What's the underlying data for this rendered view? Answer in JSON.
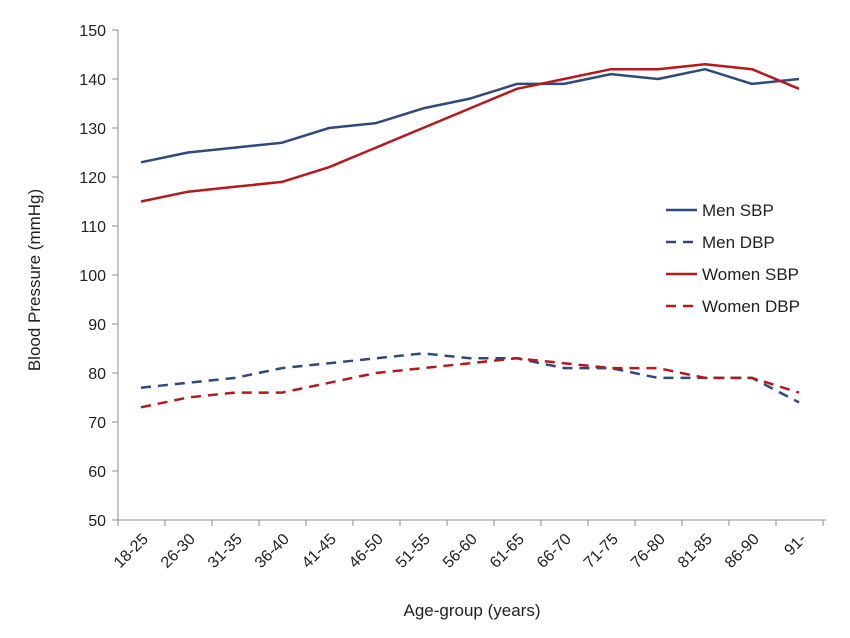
{
  "chart_data": {
    "type": "line",
    "title": "",
    "xlabel": "Age-group (years)",
    "ylabel": "Blood Pressure (mmHg)",
    "ylim": [
      50,
      150
    ],
    "yticks": [
      "50",
      "60",
      "70",
      "80",
      "90",
      "100",
      "110",
      "120",
      "130",
      "140",
      "150"
    ],
    "grid": false,
    "legend_position": "right",
    "categories": [
      "18-25",
      "26-30",
      "31-35",
      "36-40",
      "41-45",
      "46-50",
      "51-55",
      "56-60",
      "61-65",
      "66-70",
      "71-75",
      "76-80",
      "81-85",
      "86-90",
      "91-"
    ],
    "series": [
      {
        "name": "Men SBP",
        "color": "#2e4a7d",
        "dashed": false,
        "values": [
          123,
          125,
          126,
          127,
          130,
          131,
          134,
          136,
          139,
          139,
          141,
          140,
          142,
          139,
          140
        ]
      },
      {
        "name": "Men DBP",
        "color": "#2e4a7d",
        "dashed": true,
        "values": [
          77,
          78,
          79,
          81,
          82,
          83,
          84,
          83,
          83,
          81,
          81,
          79,
          79,
          79,
          74
        ]
      },
      {
        "name": "Women SBP",
        "color": "#b5191e",
        "dashed": false,
        "values": [
          115,
          117,
          118,
          119,
          122,
          126,
          130,
          134,
          138,
          140,
          142,
          142,
          143,
          142,
          138
        ]
      },
      {
        "name": "Women DBP",
        "color": "#b5191e",
        "dashed": true,
        "values": [
          73,
          75,
          76,
          76,
          78,
          80,
          81,
          82,
          83,
          82,
          81,
          81,
          79,
          79,
          76
        ]
      }
    ]
  }
}
